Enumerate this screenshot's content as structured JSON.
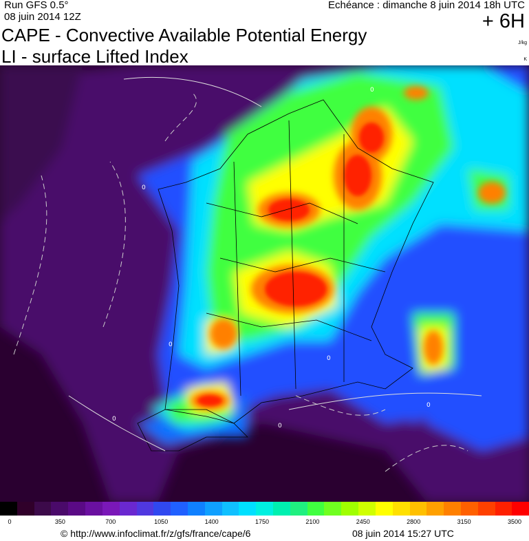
{
  "header": {
    "run": "Run GFS 0.5°",
    "run_date": "08 juin 2014 12Z",
    "echeance": "Echéance : dimanche 8 juin 2014 18h UTC",
    "offset": "+ 6H",
    "title_cape": "CAPE - Convective Available Potential Energy",
    "title_li": "LI - surface Lifted Index",
    "unit_cape": "J/kg",
    "unit_li": "K"
  },
  "map": {
    "contour_label": "0",
    "colors": {
      "background": "#2a0030",
      "sea_low": "#4a0a6a",
      "blue": "#2050ff",
      "cyan": "#00e0ff",
      "green": "#40ff40",
      "yellow": "#ffff00",
      "orange": "#ff8000",
      "red": "#ff2000"
    }
  },
  "legend": {
    "tick_labels": [
      "0",
      "350",
      "700",
      "1050",
      "1400",
      "1750",
      "2100",
      "2450",
      "2800",
      "3150",
      "3500"
    ],
    "colors": [
      "#000000",
      "#30002a",
      "#3c0a4a",
      "#4a0a6a",
      "#5a0a85",
      "#6a10a0",
      "#7a18b8",
      "#6a28d0",
      "#5038e0",
      "#3048f0",
      "#2060ff",
      "#1080ff",
      "#10a0ff",
      "#10c0ff",
      "#00e0ff",
      "#00f0e0",
      "#00f0b0",
      "#20f080",
      "#40ff40",
      "#70ff20",
      "#a0ff00",
      "#d0ff00",
      "#ffff00",
      "#ffe000",
      "#ffc000",
      "#ffa000",
      "#ff8000",
      "#ff6000",
      "#ff4000",
      "#ff2000",
      "#ff0000"
    ]
  },
  "footer": {
    "copyright": "© http://www.infoclimat.fr/z/gfs/france/cape/6",
    "generated": "08 juin 2014 15:27 UTC"
  }
}
